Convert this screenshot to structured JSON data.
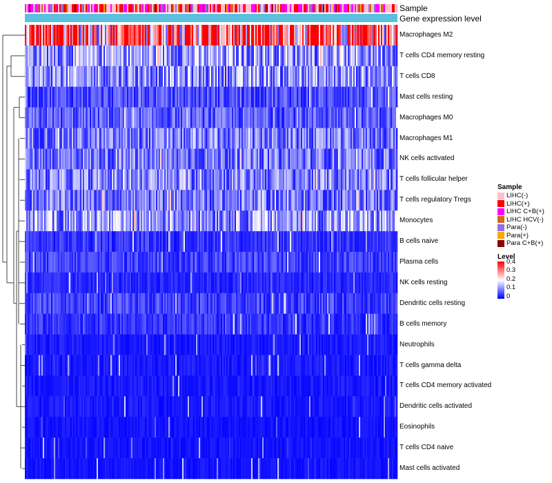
{
  "chart_data": {
    "type": "heatmap",
    "annotation_tracks": [
      "Sample",
      "Gene expression level"
    ],
    "rows": [
      "Macrophages M2",
      "T cells CD4 memory resting",
      "T cells CD8",
      "Mast cells resting",
      "Macrophages M0",
      "Macrophages M1",
      "NK cells activated",
      "T cells follicular helper",
      "T cells regulatory  Tregs",
      "Monocytes",
      "B cells naive",
      "Plasma cells",
      "NK cells resting",
      "Dendritic cells resting",
      "B cells memory",
      "Neutrophils",
      "T cells gamma delta",
      "T cells CD4 memory activated",
      "Dendritic cells activated",
      "Eosinophils",
      "T cells CD4 naive",
      "Mast cells activated"
    ],
    "row_mean_level": [
      0.33,
      0.12,
      0.11,
      0.06,
      0.07,
      0.09,
      0.09,
      0.1,
      0.09,
      0.12,
      0.04,
      0.05,
      0.03,
      0.05,
      0.04,
      0.02,
      0.02,
      0.02,
      0.02,
      0.015,
      0.015,
      0.015
    ],
    "column_count": 270,
    "sample_legend": {
      "title": "Sample",
      "items": [
        {
          "label": "LIHC(-)",
          "color": "#ffc0cb"
        },
        {
          "label": "LIHC(+)",
          "color": "#ff0000"
        },
        {
          "label": "LIHC C+B(+)",
          "color": "#ff00ff"
        },
        {
          "label": "LIHC HCV(-)",
          "color": "#d2691e"
        },
        {
          "label": "Para(-)",
          "color": "#9370db"
        },
        {
          "label": "Para(+)",
          "color": "#ffa500"
        },
        {
          "label": "Para C+B(+)",
          "color": "#8b0000"
        }
      ]
    },
    "level_legend": {
      "title": "Level",
      "ticks": [
        "0.4",
        "0.3",
        "0.2",
        "0.1",
        "0"
      ],
      "range": [
        0,
        0.4
      ],
      "colors": {
        "low": "#0000ff",
        "mid": "#ffffff",
        "high": "#ff0000"
      }
    },
    "expression_track_color": "#5bc0e0",
    "row_dendrogram": true
  }
}
